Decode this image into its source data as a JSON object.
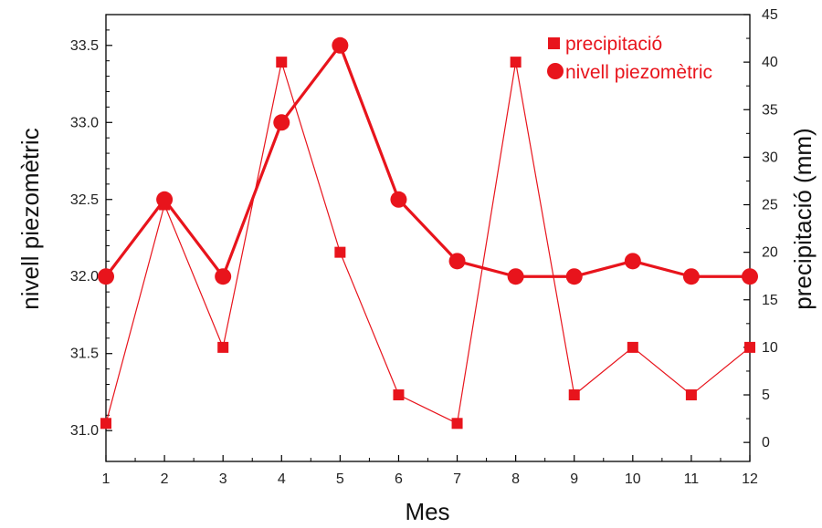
{
  "chart_data": {
    "type": "line",
    "title": "",
    "xlabel": "Mes",
    "ylabel_left": "nivell piezomètric",
    "ylabel_right": "precipitació (mm)",
    "x": [
      1,
      2,
      3,
      4,
      5,
      6,
      7,
      8,
      9,
      10,
      11,
      12
    ],
    "x_ticks": [
      "1",
      "2",
      "3",
      "4",
      "5",
      "6",
      "7",
      "8",
      "9",
      "10",
      "11",
      "12"
    ],
    "xlim": [
      1,
      12
    ],
    "ylim_left": [
      30.8,
      33.7
    ],
    "yticks_left": [
      "31.0",
      "31.5",
      "32.0",
      "32.5",
      "33.0",
      "33.5"
    ],
    "ylim_right": [
      -2,
      45
    ],
    "yticks_right": [
      "0",
      "5",
      "10",
      "15",
      "20",
      "25",
      "30",
      "35",
      "40",
      "45"
    ],
    "grid": false,
    "legend_position": "top-right",
    "series": [
      {
        "name": "precipitació",
        "axis": "right",
        "marker": "square",
        "color": "#e8141c",
        "values": [
          2,
          25,
          10,
          40,
          20,
          5,
          2,
          40,
          5,
          10,
          5,
          10
        ]
      },
      {
        "name": "nivell piezomètric",
        "axis": "left",
        "marker": "circle",
        "color": "#e8141c",
        "values": [
          32.0,
          32.5,
          32.0,
          33.0,
          33.5,
          32.5,
          32.1,
          32.0,
          32.0,
          32.1,
          32.0,
          32.0
        ]
      }
    ]
  }
}
